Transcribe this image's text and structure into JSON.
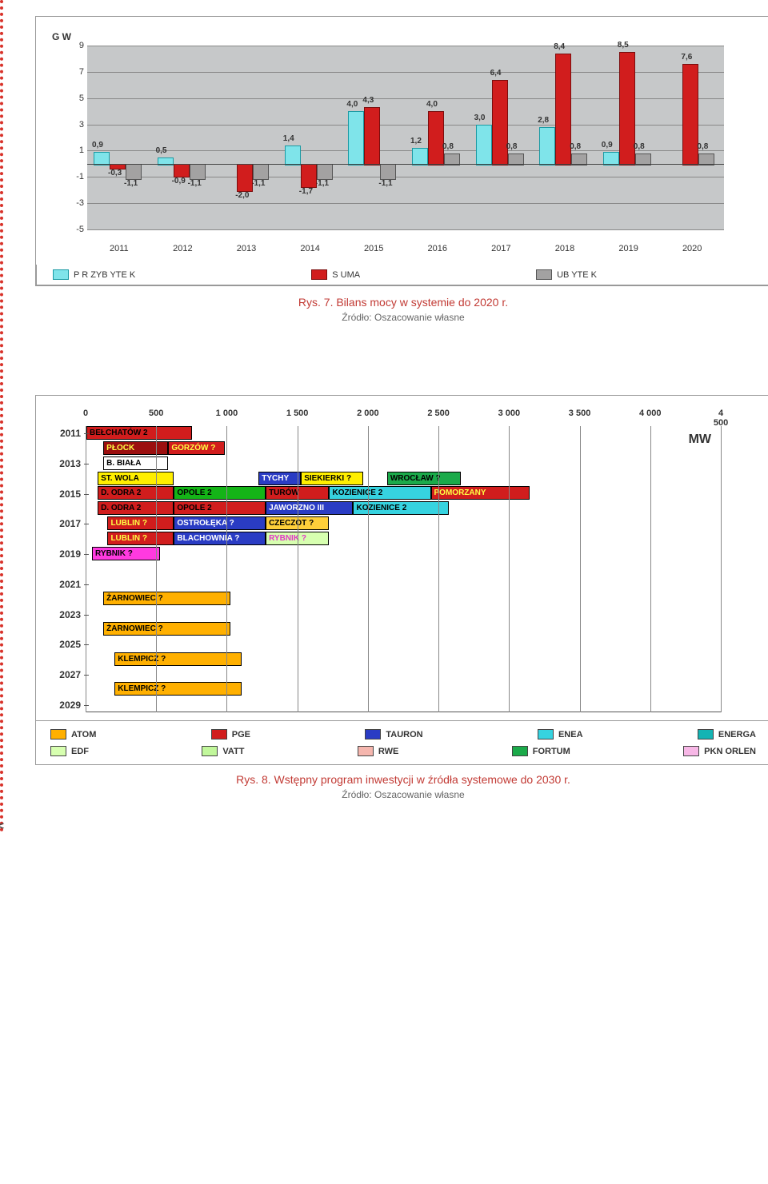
{
  "chart1": {
    "type": "grouped-bar",
    "axis_label": "G W",
    "background": "#c6c8c9",
    "grid_color": "#888888",
    "years": [
      "2011",
      "2012",
      "2013",
      "2014",
      "2015",
      "2016",
      "2017",
      "2018",
      "2019",
      "2020"
    ],
    "ylim": [
      -5,
      9
    ],
    "yticks": [
      -5,
      -3,
      -1,
      1,
      3,
      5,
      7,
      9
    ],
    "series": [
      {
        "key": "przybytek",
        "label": "P R ZYB YTE K",
        "color": "#7fe4ea",
        "border": "#1a9aa3"
      },
      {
        "key": "suma",
        "label": "S UMA",
        "color": "#d11d1d",
        "border": "#7a0d0d"
      },
      {
        "key": "ubytek",
        "label": "UB YTE K",
        "color": "#a3a2a2",
        "border": "#555555"
      }
    ],
    "data": {
      "przybytek": [
        0.9,
        0.5,
        null,
        1.4,
        4.0,
        1.2,
        3.0,
        2.8,
        0.9,
        null
      ],
      "suma": [
        -0.3,
        null,
        null,
        null,
        null,
        4.0,
        6.4,
        8.4,
        8.5,
        7.6
      ],
      "suma_low": [
        null,
        null,
        null,
        null,
        4.3,
        null,
        null,
        null,
        null,
        null
      ],
      "ubytek": [
        -1.1,
        -1.1,
        -1.1,
        -1.1,
        -1.1,
        0.8,
        0.8,
        0.8,
        0.8,
        0.8
      ],
      "extra_neg": [
        null,
        -0.9,
        -2.0,
        -1.7,
        null,
        null,
        null,
        null,
        null,
        null
      ]
    },
    "caption": "Rys. 7. Bilans mocy w systemie do 2020 r.",
    "subcaption": "Źródło: Oszacowanie własne"
  },
  "chart2": {
    "type": "gantt",
    "xticks": [
      "0",
      "500",
      "1 000",
      "1 500",
      "2 000",
      "2 500",
      "3 000",
      "3 500",
      "4 000",
      "4 500"
    ],
    "years": [
      "2011",
      "2013",
      "2015",
      "2017",
      "2019",
      "2021",
      "2023",
      "2025",
      "2027",
      "2029"
    ],
    "xlim": [
      0,
      4500
    ],
    "mw_label": "MW",
    "grid_color": "#888888",
    "bars": [
      {
        "row": 0,
        "start": 0,
        "len": 750,
        "label": "BEŁCHATÓW 2",
        "bg": "#d11d1d",
        "fg": "#000"
      },
      {
        "row": 1,
        "start": 120,
        "len": 460,
        "label": "PŁOCK",
        "bg": "#9b0f0f",
        "fg": "#ff4"
      },
      {
        "row": 1,
        "start": 580,
        "len": 400,
        "label": "GORZÓW ?",
        "bg": "#d11d1d",
        "fg": "#ff4"
      },
      {
        "row": 2,
        "start": 120,
        "len": 460,
        "label": "B. BIAŁA",
        "bg": "#fff",
        "fg": "#000"
      },
      {
        "row": 3,
        "start": 80,
        "len": 540,
        "label": "ST. WOLA",
        "bg": "#ffee00",
        "fg": "#000"
      },
      {
        "row": 3,
        "start": 1220,
        "len": 300,
        "label": "TYCHY",
        "bg": "#2a3cc4",
        "fg": "#fff"
      },
      {
        "row": 3,
        "start": 1520,
        "len": 440,
        "label": "SIEKIERKI ?",
        "bg": "#ffee00",
        "fg": "#000"
      },
      {
        "row": 3,
        "start": 2130,
        "len": 520,
        "label": "WROCŁAW ?",
        "bg": "#1baa4a",
        "fg": "#000"
      },
      {
        "row": 4,
        "start": 80,
        "len": 540,
        "label": "D. ODRA 2",
        "bg": "#d11d1d",
        "fg": "#000"
      },
      {
        "row": 4,
        "start": 620,
        "len": 650,
        "label": "OPOLE 2",
        "bg": "#14b417",
        "fg": "#000"
      },
      {
        "row": 4,
        "start": 1270,
        "len": 450,
        "label": "TURÓW",
        "bg": "#d11d1d",
        "fg": "#000"
      },
      {
        "row": 4,
        "start": 1720,
        "len": 720,
        "label": "KOZIENICE 2",
        "bg": "#36d3e0",
        "fg": "#000"
      },
      {
        "row": 4,
        "start": 2440,
        "len": 700,
        "label": "POMORZANY",
        "bg": "#d11d1d",
        "fg": "#ff4"
      },
      {
        "row": 5,
        "start": 80,
        "len": 540,
        "label": "D. ODRA 2",
        "bg": "#d11d1d",
        "fg": "#000"
      },
      {
        "row": 5,
        "start": 620,
        "len": 650,
        "label": "OPOLE 2",
        "bg": "#d11d1d",
        "fg": "#000"
      },
      {
        "row": 5,
        "start": 1270,
        "len": 620,
        "label": "JAWORZNO III",
        "bg": "#2a3cc4",
        "fg": "#fff"
      },
      {
        "row": 5,
        "start": 1890,
        "len": 680,
        "label": "KOZIENICE 2",
        "bg": "#36d3e0",
        "fg": "#000"
      },
      {
        "row": 6,
        "start": 150,
        "len": 470,
        "label": "LUBLIN ?",
        "bg": "#d11d1d",
        "fg": "#ff4"
      },
      {
        "row": 6,
        "start": 620,
        "len": 650,
        "label": "OSTROŁĘKA ?",
        "bg": "#2a3cc4",
        "fg": "#fff"
      },
      {
        "row": 6,
        "start": 1270,
        "len": 450,
        "label": "CZECZOT ?",
        "bg": "#ffcf3a",
        "fg": "#000"
      },
      {
        "row": 7,
        "start": 150,
        "len": 470,
        "label": "LUBLIN ?",
        "bg": "#d11d1d",
        "fg": "#ff4"
      },
      {
        "row": 7,
        "start": 620,
        "len": 650,
        "label": "BLACHOWNIA ?",
        "bg": "#2a3cc4",
        "fg": "#fff"
      },
      {
        "row": 7,
        "start": 1270,
        "len": 450,
        "label": "RYBNIK ?",
        "bg": "#d7ffb0",
        "fg": "#e236c7"
      },
      {
        "row": 8,
        "start": 40,
        "len": 480,
        "label": "RYBNIK ?",
        "bg": "#ff3ae0",
        "fg": "#000"
      },
      {
        "row": 11,
        "start": 120,
        "len": 900,
        "label": "ŻARNOWIEC ?",
        "bg": "#ffb000",
        "fg": "#000"
      },
      {
        "row": 13,
        "start": 120,
        "len": 900,
        "label": "ŻARNOWIEC ?",
        "bg": "#ffb000",
        "fg": "#000"
      },
      {
        "row": 15,
        "start": 200,
        "len": 900,
        "label": "KLEMPICZ ?",
        "bg": "#ffb000",
        "fg": "#000"
      },
      {
        "row": 17,
        "start": 200,
        "len": 900,
        "label": "KLEMPICZ ?",
        "bg": "#ffb000",
        "fg": "#000"
      }
    ],
    "legend": [
      {
        "label": "ATOM",
        "color": "#ffb000"
      },
      {
        "label": "PGE",
        "color": "#d11d1d"
      },
      {
        "label": "TAURON",
        "color": "#2a3cc4"
      },
      {
        "label": "ENEA",
        "color": "#36d3e0"
      },
      {
        "label": "ENERGA",
        "color": "#14b4b4"
      },
      {
        "label": "EDF",
        "color": "#d7ffb0"
      },
      {
        "label": "VATT",
        "color": "#c1f79b"
      },
      {
        "label": "RWE",
        "color": "#f5b6ae"
      },
      {
        "label": "FORTUM",
        "color": "#1baa4a"
      },
      {
        "label": "PKN ORLEN",
        "color": "#f7b7e6"
      }
    ],
    "caption": "Rys. 8. Wstępny program inwestycji w źródła systemowe do 2030 r.",
    "subcaption": "Źródło: Oszacowanie własne"
  }
}
